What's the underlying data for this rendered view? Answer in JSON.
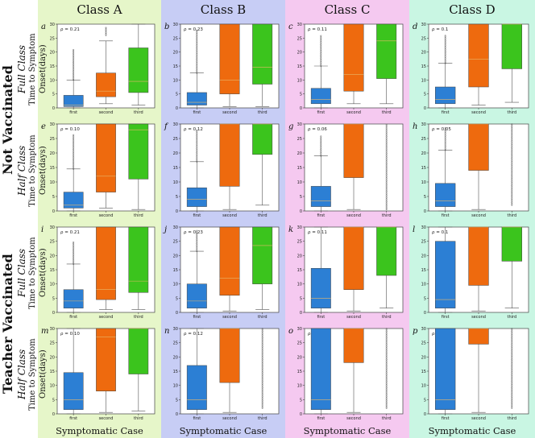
{
  "colors": {
    "first": "#2c7fd4",
    "second": "#ee6a0e",
    "third": "#3bc41d",
    "bgA": "#e6f6c9",
    "bgB": "#c7cdf5",
    "bgC": "#f5c9f0",
    "bgD": "#c9f6e3",
    "whisker": "#555555",
    "flier": "#333333"
  },
  "columns": [
    "Class  A",
    "Class  B",
    "Class  C",
    "Class  D"
  ],
  "groups": [
    "Not Vaccinated",
    "Teacher Vaccinated"
  ],
  "row_labels": [
    {
      "title": "Full Class",
      "ylabel": "Time to Symptom Onset(days)"
    },
    {
      "title": "Half Class",
      "ylabel": "Time to Symptom Onset(days)"
    },
    {
      "title": "Full Class",
      "ylabel": "Time to Symptom Onset(days)"
    },
    {
      "title": "Half Class",
      "ylabel": "Time to Symptom Onset(days)"
    }
  ],
  "xlabel": "Symptomatic Case",
  "chart_data": {
    "type": "box",
    "categories": [
      "first",
      "second",
      "third"
    ],
    "y_ticks": [
      0,
      5,
      10,
      15,
      20,
      25,
      30
    ],
    "ylim": [
      0,
      30
    ],
    "panels": [
      {
        "letter": "a",
        "rho": "ρ = 0.21",
        "boxes": [
          {
            "wlo": 0,
            "q1": 0.5,
            "med": 1,
            "q3": 4.5,
            "whi": 10,
            "fl": [
              10,
              21
            ]
          },
          {
            "wlo": 1.5,
            "q1": 4,
            "med": 6,
            "q3": 12.5,
            "whi": 24,
            "fl": [
              26,
              29
            ]
          },
          {
            "wlo": 1,
            "q1": 5.5,
            "med": 9.5,
            "q3": 21.5,
            "whi": 30
          }
        ]
      },
      {
        "letter": "b",
        "rho": "ρ = 0.23",
        "boxes": [
          {
            "wlo": 0,
            "q1": 1,
            "med": 2,
            "q3": 5.5,
            "whi": 12.5,
            "fl": [
              12.5,
              28
            ]
          },
          {
            "wlo": 0.5,
            "q1": 5,
            "med": 10,
            "q3": 30,
            "whi": 30
          },
          {
            "wlo": 0.5,
            "q1": 8.5,
            "med": 14.5,
            "q3": 30,
            "whi": 30
          }
        ]
      },
      {
        "letter": "c",
        "rho": "ρ = 0.11",
        "boxes": [
          {
            "wlo": 0,
            "q1": 1.5,
            "med": 3,
            "q3": 7,
            "whi": 15,
            "fl": [
              15,
              26
            ]
          },
          {
            "wlo": 1.5,
            "q1": 6,
            "med": 12,
            "q3": 30,
            "whi": 30
          },
          {
            "wlo": 1.5,
            "q1": 10.5,
            "med": 24,
            "q3": 30,
            "whi": 30
          }
        ]
      },
      {
        "letter": "d",
        "rho": "ρ = 0.1",
        "boxes": [
          {
            "wlo": 0,
            "q1": 1.5,
            "med": 3,
            "q3": 7.5,
            "whi": 16,
            "fl": [
              16,
              26
            ]
          },
          {
            "wlo": 1,
            "q1": 7.5,
            "med": 17.5,
            "q3": 30,
            "whi": 30
          },
          {
            "wlo": 2,
            "q1": 14,
            "med": 30,
            "q3": 30,
            "whi": 30
          }
        ]
      },
      {
        "letter": "e",
        "rho": "ρ = 0.10",
        "boxes": [
          {
            "wlo": 0,
            "q1": 1,
            "med": 2,
            "q3": 6.5,
            "whi": 14.5,
            "fl": [
              14.5,
              26.5
            ]
          },
          {
            "wlo": 1,
            "q1": 6.5,
            "med": 12,
            "q3": 30,
            "whi": 30
          },
          {
            "wlo": 0.5,
            "q1": 11,
            "med": 28,
            "q3": 30,
            "whi": 30
          }
        ]
      },
      {
        "letter": "f",
        "rho": "ρ = 0.12",
        "boxes": [
          {
            "wlo": 0,
            "q1": 1.5,
            "med": 4,
            "q3": 8,
            "whi": 17,
            "fl": [
              17,
              28
            ]
          },
          {
            "wlo": 0.5,
            "q1": 8.5,
            "med": 30,
            "q3": 30,
            "whi": 30
          },
          {
            "wlo": 2,
            "q1": 19.5,
            "med": 30,
            "q3": 30,
            "whi": 30
          }
        ]
      },
      {
        "letter": "g",
        "rho": "ρ = 0.06",
        "boxes": [
          {
            "wlo": 0,
            "q1": 1.5,
            "med": 3.5,
            "q3": 8.5,
            "whi": 19,
            "fl": [
              19,
              26
            ]
          },
          {
            "wlo": 0.5,
            "q1": 11.5,
            "med": 30,
            "q3": 30,
            "whi": 30
          },
          {
            "wlo": 0,
            "q1": 0,
            "med": 0,
            "q3": 0,
            "whi": 0,
            "fl": [
              0.5,
              30
            ]
          }
        ]
      },
      {
        "letter": "h",
        "rho": "ρ = 0.05",
        "boxes": [
          {
            "wlo": 0,
            "q1": 1.5,
            "med": 3.5,
            "q3": 9.5,
            "whi": 21,
            "fl": [
              21,
              29
            ]
          },
          {
            "wlo": 0.5,
            "q1": 14,
            "med": 30,
            "q3": 30,
            "whi": 30
          },
          {
            "wlo": 0,
            "q1": 0,
            "med": 0,
            "q3": 0,
            "whi": 0,
            "fl": [
              2,
              30
            ]
          }
        ]
      },
      {
        "letter": "i",
        "rho": "ρ = 0.21",
        "boxes": [
          {
            "wlo": 0,
            "q1": 1.5,
            "med": 4,
            "q3": 8,
            "whi": 17,
            "fl": [
              17,
              25
            ]
          },
          {
            "wlo": 1,
            "q1": 4.5,
            "med": 8,
            "q3": 30,
            "whi": 30
          },
          {
            "wlo": 1,
            "q1": 7,
            "med": 11,
            "q3": 30,
            "whi": 30
          }
        ]
      },
      {
        "letter": "j",
        "rho": "ρ = 0.23",
        "boxes": [
          {
            "wlo": 0,
            "q1": 1.5,
            "med": 4,
            "q3": 10,
            "whi": 21.5,
            "fl": [
              21.5,
              29
            ]
          },
          {
            "wlo": 0.5,
            "q1": 6,
            "med": 12,
            "q3": 30,
            "whi": 30
          },
          {
            "wlo": 1,
            "q1": 10,
            "med": 23.5,
            "q3": 30,
            "whi": 30
          }
        ]
      },
      {
        "letter": "k",
        "rho": "ρ = 0.11",
        "boxes": [
          {
            "wlo": 0,
            "q1": 1.5,
            "med": 5,
            "q3": 15.5,
            "whi": 30
          },
          {
            "wlo": 0.5,
            "q1": 8,
            "med": 30,
            "q3": 30,
            "whi": 30
          },
          {
            "wlo": 1.5,
            "q1": 13,
            "med": 30,
            "q3": 30,
            "whi": 30
          }
        ]
      },
      {
        "letter": "l",
        "rho": "ρ = 0.1",
        "boxes": [
          {
            "wlo": 0,
            "q1": 1.5,
            "med": 4.5,
            "q3": 25,
            "whi": 30
          },
          {
            "wlo": 0.5,
            "q1": 9.5,
            "med": 30,
            "q3": 30,
            "whi": 30
          },
          {
            "wlo": 1.5,
            "q1": 18,
            "med": 30,
            "q3": 30,
            "whi": 30
          }
        ]
      },
      {
        "letter": "m",
        "rho": "ρ = 0.10",
        "boxes": [
          {
            "wlo": 0,
            "q1": 1.5,
            "med": 5,
            "q3": 14.5,
            "whi": 30
          },
          {
            "wlo": 0.5,
            "q1": 8,
            "med": 27,
            "q3": 30,
            "whi": 30
          },
          {
            "wlo": 1,
            "q1": 14,
            "med": 30,
            "q3": 30,
            "whi": 30
          }
        ]
      },
      {
        "letter": "n",
        "rho": "ρ = 0.12",
        "boxes": [
          {
            "wlo": 0,
            "q1": 1.5,
            "med": 5,
            "q3": 17,
            "whi": 30
          },
          {
            "wlo": 0.5,
            "q1": 11,
            "med": 30,
            "q3": 30,
            "whi": 30
          },
          {
            "wlo": 0,
            "q1": 0,
            "med": 0,
            "q3": 0,
            "whi": 0,
            "fl": [
              2,
              30
            ]
          }
        ]
      },
      {
        "letter": "o",
        "rho": "ρ = 0.06",
        "boxes": [
          {
            "wlo": 0,
            "q1": 1.5,
            "med": 5,
            "q3": 30,
            "whi": 30
          },
          {
            "wlo": 0.5,
            "q1": 18,
            "med": 30,
            "q3": 30,
            "whi": 30
          },
          {
            "wlo": 0,
            "q1": 0,
            "med": 0,
            "q3": 0,
            "whi": 0,
            "fl": [
              2,
              30
            ]
          }
        ]
      },
      {
        "letter": "p",
        "rho": "ρ = 0.05",
        "boxes": [
          {
            "wlo": 0,
            "q1": 1.5,
            "med": 5,
            "q3": 30,
            "whi": 30
          },
          {
            "wlo": 0.5,
            "q1": 24.5,
            "med": 30,
            "q3": 30,
            "whi": 30
          },
          {
            "wlo": 0,
            "q1": 0,
            "med": 0,
            "q3": 0,
            "whi": 0,
            "fl": [
              2,
              30
            ]
          }
        ]
      }
    ]
  }
}
